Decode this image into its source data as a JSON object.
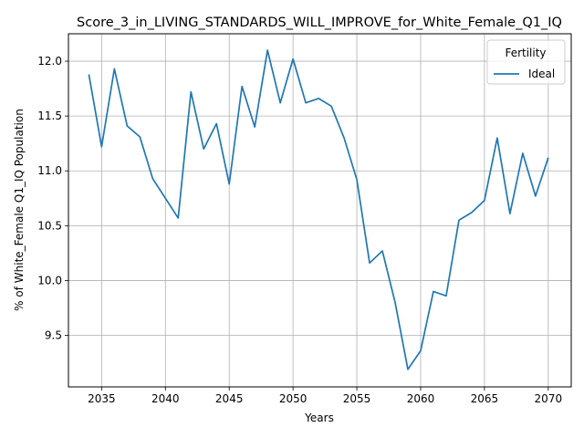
{
  "chart_data": {
    "type": "line",
    "title": "Score_3_in_LIVING_STANDARDS_WILL_IMPROVE_for_White_Female_Q1_IQ",
    "xlabel": "Years",
    "ylabel": "% of White_Female Q1_IQ Population",
    "xlim": [
      2032.4,
      2071.8
    ],
    "ylim": [
      9.03,
      12.25
    ],
    "x_ticks": [
      2035,
      2040,
      2045,
      2050,
      2055,
      2060,
      2065,
      2070
    ],
    "y_ticks": [
      9.5,
      10.0,
      10.5,
      11.0,
      11.5,
      12.0
    ],
    "x_tick_labels": [
      "2035",
      "2040",
      "2045",
      "2050",
      "2055",
      "2060",
      "2065",
      "2070"
    ],
    "y_tick_labels": [
      "9.5",
      "10.0",
      "10.5",
      "11.0",
      "11.5",
      "12.0"
    ],
    "grid": true,
    "legend": {
      "title": "Fertility",
      "placement": "top-right"
    },
    "series": [
      {
        "name": "Ideal",
        "color": "#1f77b4",
        "x": [
          2034,
          2035,
          2036,
          2037,
          2038,
          2039,
          2040,
          2041,
          2042,
          2043,
          2044,
          2045,
          2046,
          2047,
          2048,
          2049,
          2050,
          2051,
          2052,
          2053,
          2054,
          2055,
          2056,
          2057,
          2058,
          2059,
          2060,
          2061,
          2062,
          2063,
          2064,
          2065,
          2066,
          2067,
          2068,
          2069,
          2070
        ],
        "values": [
          11.88,
          11.22,
          11.93,
          11.41,
          11.31,
          10.93,
          10.75,
          10.57,
          11.72,
          11.2,
          11.43,
          10.88,
          11.77,
          11.4,
          12.1,
          11.62,
          12.02,
          11.62,
          11.66,
          11.59,
          11.3,
          10.92,
          10.16,
          10.27,
          9.8,
          9.19,
          9.36,
          9.9,
          9.86,
          10.55,
          10.62,
          10.73,
          11.3,
          10.61,
          11.16,
          10.77,
          11.12
        ]
      }
    ]
  }
}
